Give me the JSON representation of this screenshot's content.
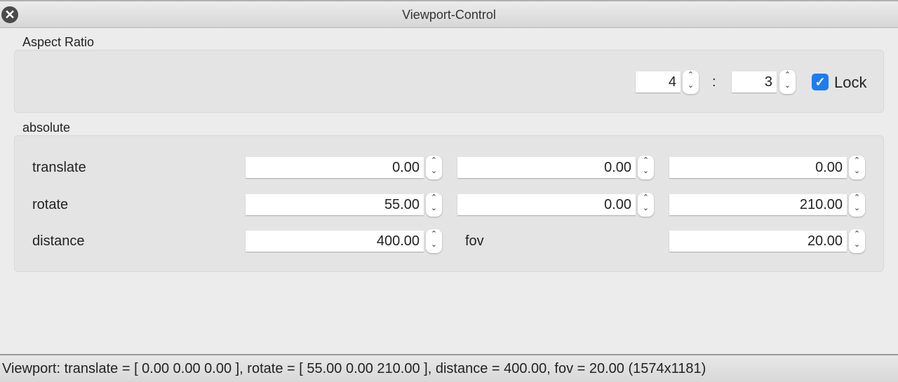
{
  "window": {
    "title": "Viewport-Control"
  },
  "aspect": {
    "label": "Aspect Ratio",
    "width": "4",
    "height": "3",
    "separator": ":",
    "lock_label": "Lock",
    "lock_checked": true
  },
  "absolute": {
    "label": "absolute",
    "translate": {
      "label": "translate",
      "values": [
        "0.00",
        "0.00",
        "0.00"
      ]
    },
    "rotate": {
      "label": "rotate",
      "values": [
        "55.00",
        "0.00",
        "210.00"
      ]
    },
    "distance": {
      "label": "distance",
      "value": "400.00"
    },
    "fov": {
      "label": "fov",
      "value": "20.00"
    }
  },
  "status": {
    "text": "Viewport: translate = [ 0.00 0.00 0.00 ], rotate = [ 55.00 0.00 210.00 ], distance = 400.00, fov = 20.00 (1574x1181)"
  },
  "colors": {
    "accent": "#1e7cf2"
  }
}
